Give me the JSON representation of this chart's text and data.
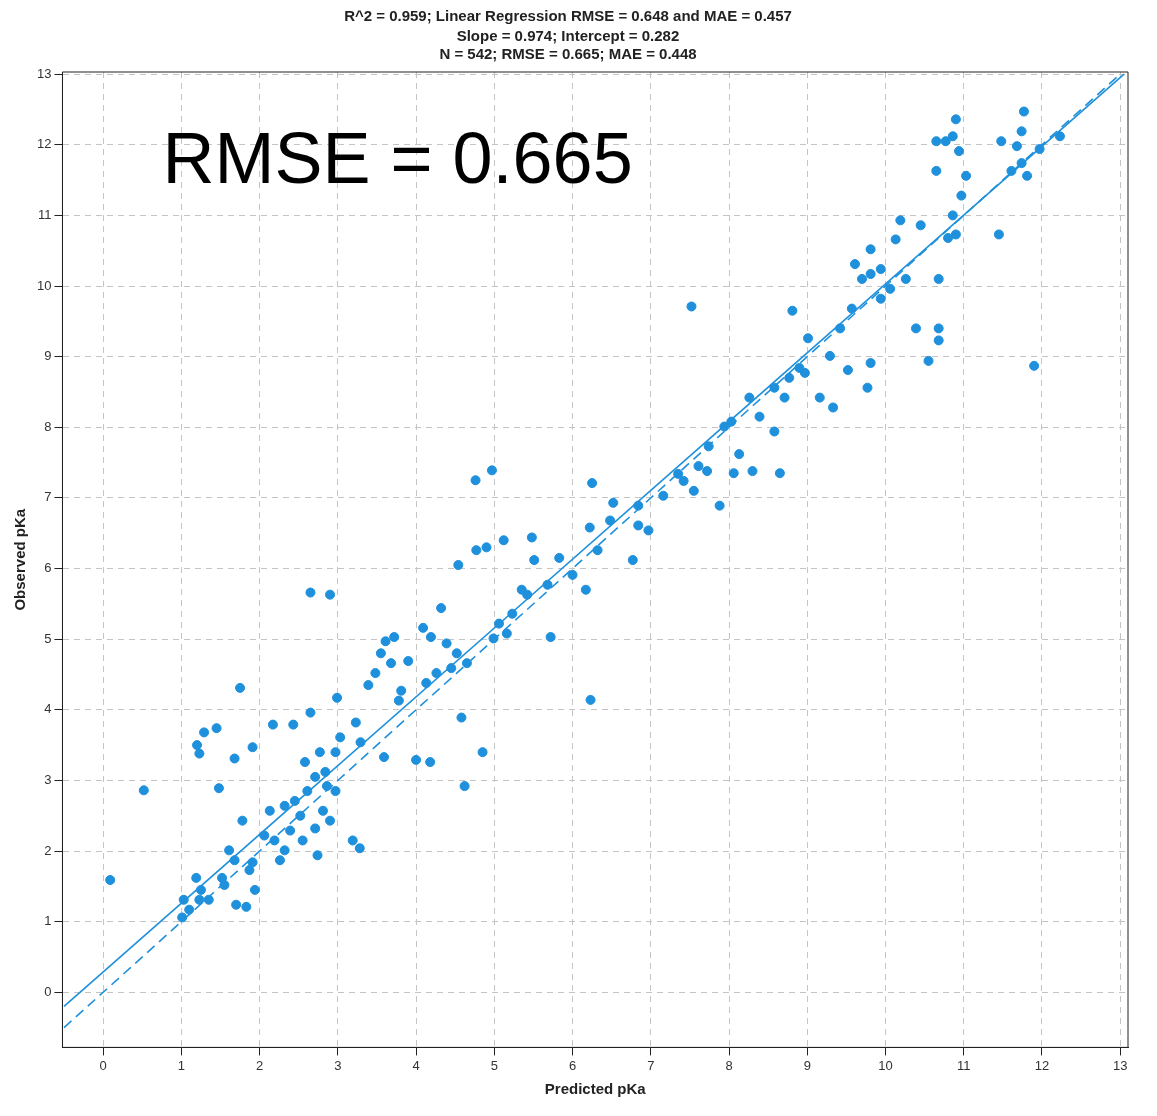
{
  "chart_data": {
    "type": "scatter",
    "title": "R^2 = 0.959; Linear Regression RMSE = 0.648 and MAE = 0.457",
    "subtitle": "Slope = 0.974; Intercept = 0.282\nN = 542; RMSE = 0.665; MAE = 0.448",
    "xlabel": "Predicted pKa",
    "ylabel": "Observed pKa",
    "annotations": [
      "RMSE = 0.665"
    ],
    "xlim": [
      -0.52,
      13.1
    ],
    "ylim": [
      -0.78,
      13.03
    ],
    "xticks": [
      0,
      1,
      2,
      3,
      4,
      5,
      6,
      7,
      8,
      9,
      10,
      11,
      12,
      13
    ],
    "yticks": [
      0,
      1,
      2,
      3,
      4,
      5,
      6,
      7,
      8,
      9,
      10,
      11,
      12,
      13
    ],
    "grid": true,
    "series": [
      {
        "color": "#1e90dc",
        "marker": "circle",
        "x": [
          0.09,
          0.52,
          1.03,
          1.1,
          1.01,
          1.19,
          1.25,
          1.2,
          1.23,
          1.29,
          1.45,
          1.48,
          1.35,
          1.52,
          1.61,
          1.68,
          1.75,
          1.78,
          1.68,
          1.7,
          1.83,
          1.91,
          1.91,
          1.94,
          2.06,
          2.17,
          2.13,
          2.19,
          2.26,
          2.32,
          2.39,
          2.43,
          2.45,
          2.52,
          2.58,
          2.61,
          2.65,
          2.55,
          2.71,
          2.74,
          2.71,
          2.84,
          2.9,
          2.81,
          2.9,
          2.77,
          2.65,
          2.86,
          2.97,
          2.99,
          3.03,
          3.19,
          3.28,
          3.23,
          3.29,
          3.39,
          3.48,
          3.59,
          3.55,
          3.61,
          3.72,
          3.68,
          3.81,
          3.78,
          3.9,
          4.0,
          4.09,
          4.19,
          4.13,
          4.18,
          4.32,
          4.39,
          4.45,
          4.54,
          4.58,
          4.62,
          4.76,
          4.77,
          4.85,
          4.9,
          4.97,
          4.99,
          5.06,
          5.16,
          5.12,
          5.23,
          5.35,
          5.48,
          5.51,
          5.72,
          5.83,
          6.0,
          6.23,
          6.17,
          6.22,
          6.25,
          6.32,
          6.48,
          6.52,
          6.77,
          6.84,
          6.97,
          7.16,
          7.35,
          7.55,
          7.52,
          7.61,
          7.72,
          7.88,
          7.94,
          8.03,
          8.06,
          8.13,
          8.26,
          8.3,
          8.65,
          8.58,
          8.71,
          8.77,
          8.81,
          8.9,
          9.01,
          9.16,
          9.29,
          9.33,
          9.42,
          9.52,
          9.57,
          9.77,
          9.81,
          9.7,
          9.81,
          9.94,
          9.94,
          10.06,
          10.13,
          10.19,
          10.26,
          10.45,
          10.39,
          10.55,
          10.68,
          10.65,
          10.65,
          10.68,
          10.68,
          10.77,
          10.86,
          10.9,
          10.94,
          10.97,
          11.03,
          10.86,
          10.9,
          11.48,
          11.68,
          11.77,
          11.74,
          11.81,
          11.45,
          11.9,
          11.97,
          12.23,
          11.61,
          11.74,
          10.8,
          9.81,
          9.61,
          4.26,
          4.52,
          4.65,
          5.42,
          5.68,
          6.84,
          7.42,
          7.74,
          8.39,
          8.58,
          8.97,
          2.97,
          2.32,
          1.87,
          1.55,
          1.23
        ],
        "values": [
          1.59,
          2.86,
          1.31,
          1.17,
          1.06,
          1.62,
          1.45,
          3.5,
          3.38,
          3.68,
          3.74,
          2.89,
          1.31,
          1.62,
          2.01,
          3.31,
          4.31,
          2.43,
          1.87,
          1.24,
          1.21,
          3.47,
          1.84,
          1.45,
          2.22,
          3.79,
          2.57,
          2.15,
          1.87,
          2.64,
          2.29,
          3.79,
          2.71,
          2.5,
          3.26,
          2.85,
          5.66,
          2.15,
          2.32,
          1.94,
          3.05,
          3.12,
          2.43,
          2.57,
          5.63,
          3.4,
          3.96,
          2.92,
          3.4,
          4.17,
          3.61,
          2.15,
          2.04,
          3.82,
          3.54,
          4.35,
          4.52,
          3.33,
          4.8,
          4.97,
          5.03,
          4.66,
          4.27,
          4.13,
          4.69,
          3.29,
          5.16,
          5.03,
          4.38,
          3.26,
          5.44,
          4.94,
          4.59,
          6.05,
          3.89,
          2.92,
          7.25,
          6.26,
          3.4,
          6.3,
          7.39,
          5.01,
          5.22,
          5.08,
          6.4,
          5.36,
          5.7,
          6.44,
          6.12,
          5.03,
          6.15,
          5.91,
          4.14,
          5.7,
          6.58,
          7.21,
          6.26,
          6.68,
          6.93,
          6.12,
          6.89,
          6.54,
          7.03,
          7.34,
          7.1,
          9.71,
          7.45,
          7.38,
          6.89,
          8.01,
          8.08,
          7.35,
          7.62,
          8.42,
          7.38,
          7.35,
          7.94,
          8.42,
          8.7,
          9.65,
          8.84,
          9.26,
          8.42,
          9.01,
          8.28,
          9.4,
          8.81,
          9.68,
          8.56,
          8.91,
          10.1,
          10.17,
          10.24,
          9.82,
          9.96,
          10.66,
          10.93,
          10.1,
          10.86,
          9.4,
          8.94,
          10.1,
          11.63,
          12.05,
          9.4,
          9.23,
          12.05,
          12.12,
          12.36,
          11.91,
          11.28,
          11.56,
          11.0,
          10.73,
          12.05,
          11.98,
          12.47,
          12.19,
          11.56,
          10.73,
          8.87,
          11.94,
          12.12,
          11.63,
          11.74,
          10.68,
          10.52,
          10.31,
          4.52,
          4.8,
          4.66,
          5.63,
          5.77,
          6.61,
          7.24,
          7.73,
          8.15,
          8.56,
          8.77,
          2.85,
          2.01,
          1.73,
          1.52,
          1.31
        ]
      },
      {
        "type": "line",
        "color": "#1e90dc",
        "line_style": "solid",
        "x": [
          -0.5,
          13.05
        ],
        "values": [
          -0.2,
          13.0
        ]
      },
      {
        "type": "line",
        "color": "#1e90dc",
        "line_style": "dashed",
        "x": [
          -0.5,
          13.0
        ],
        "values": [
          -0.5,
          13.0
        ]
      }
    ]
  }
}
